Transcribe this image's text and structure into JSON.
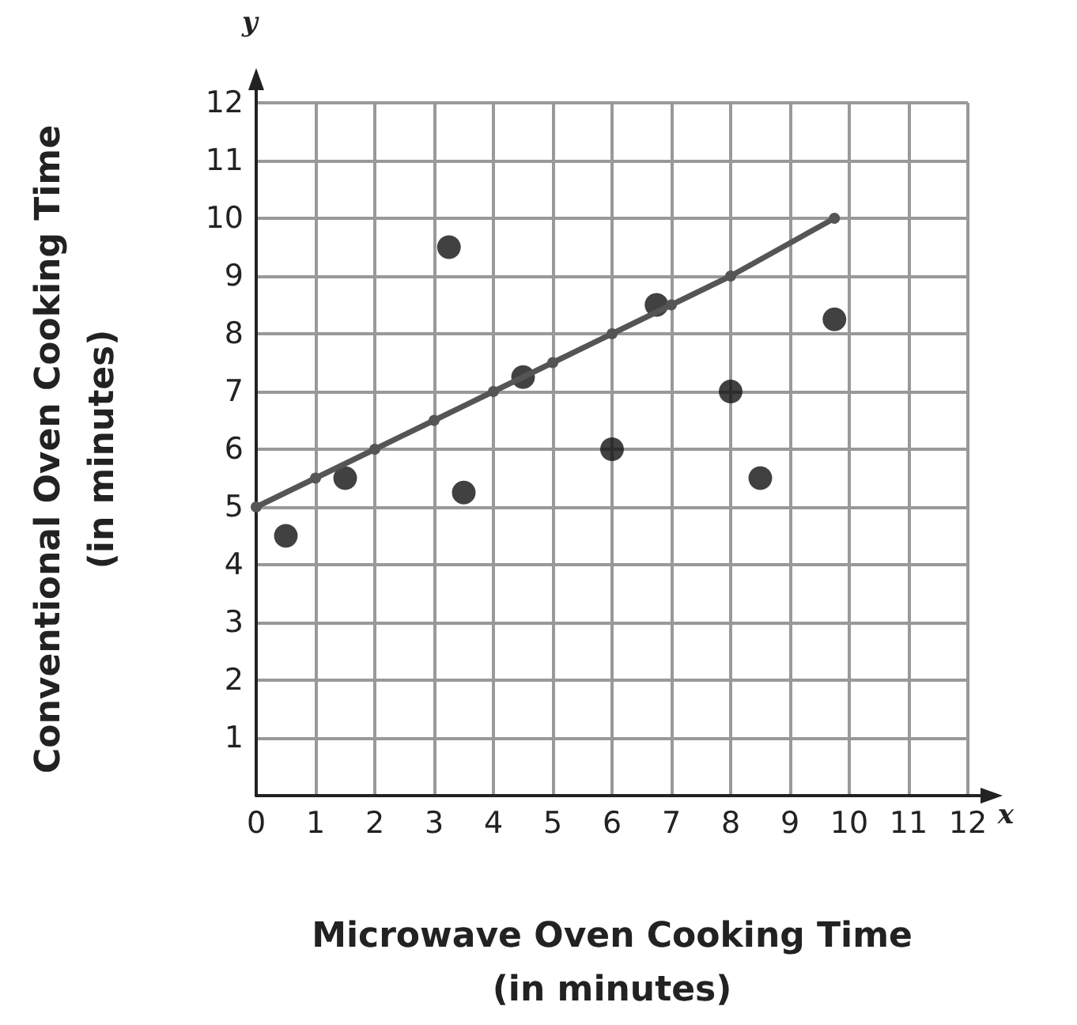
{
  "chart_data": {
    "type": "scatter",
    "xlabel": "Microwave Oven Cooking Time\n(in minutes)",
    "ylabel": "Conventional Oven Cooking Time\n(in minutes)",
    "annotations": [
      "x",
      "y"
    ],
    "x": [
      0.5,
      1.5,
      3.25,
      3.5,
      4.5,
      6,
      6.75,
      8,
      8.5,
      9.75
    ],
    "series": [
      {
        "color": "#111111",
        "values": [
          4.5,
          5.5,
          9.5,
          5.25,
          7.25,
          6,
          8.5,
          7,
          5.5,
          8.25
        ]
      },
      {
        "type": "line",
        "color": "#555555",
        "marker": "circle",
        "x": [
          0,
          1,
          2,
          3,
          4,
          5,
          6,
          7,
          8,
          9.75
        ],
        "values": [
          5,
          5.5,
          6,
          6.5,
          7,
          7.5,
          8,
          8.5,
          9,
          10
        ]
      }
    ],
    "xlim": [
      0,
      12
    ],
    "xticks": [
      0,
      1,
      2,
      3,
      4,
      5,
      6,
      7,
      8,
      9,
      10,
      11,
      12
    ],
    "ylim": [
      0,
      12
    ],
    "yticks": [
      1,
      2,
      3,
      4,
      5,
      6,
      7,
      8,
      9,
      10,
      11,
      12
    ],
    "grid": true,
    "marker": "circle"
  }
}
